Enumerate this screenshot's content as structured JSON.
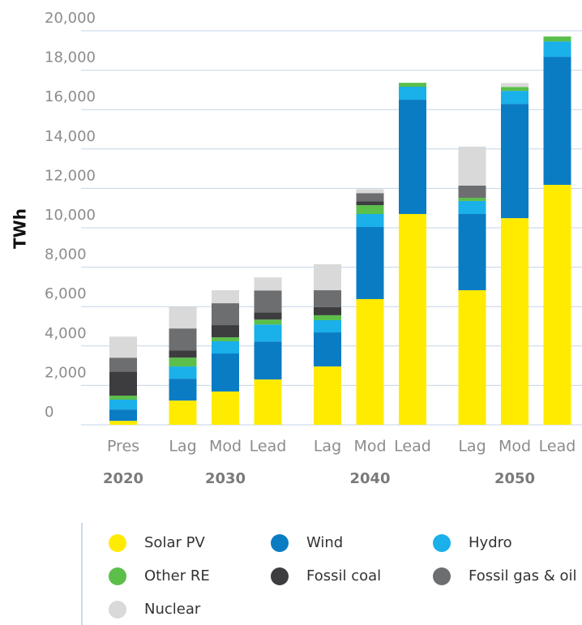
{
  "chart_data": {
    "type": "stacked_bar",
    "y_label": "TWh",
    "categories": [
      "Pres",
      "Lag",
      "Mod",
      "Lead",
      "Lag",
      "Mod",
      "Lead",
      "Lag",
      "Mod",
      "Lead"
    ],
    "group_labels": [
      "2020",
      "2030",
      "2040",
      "2050"
    ],
    "ylim": [
      0,
      20000
    ],
    "yticks": [
      0,
      {
        "value": 2000,
        "label": "2,000"
      },
      {
        "value": 4000,
        "label": "4,000"
      },
      {
        "value": 6000,
        "label": "6,000"
      },
      {
        "value": 8000,
        "label": "8,000"
      },
      {
        "value": 10000,
        "label": "10,000"
      },
      {
        "value": 12000,
        "label": "12,000"
      },
      {
        "value": 14000,
        "label": "14,000"
      },
      {
        "value": 16000,
        "label": "16,000"
      },
      {
        "value": 18000,
        "label": "18,000"
      },
      {
        "value": 20000,
        "label": "20,000"
      }
    ],
    "grid": true,
    "series": [
      {
        "name": "Solar PV",
        "color": "#ffeb00",
        "values": [
          200,
          1230,
          1690,
          2300,
          2960,
          6380,
          10700,
          6830,
          10490,
          12180
        ]
      },
      {
        "name": "Wind",
        "color": "#0a7cc4",
        "values": [
          576,
          1110,
          1930,
          1930,
          1730,
          3660,
          5800,
          3870,
          5800,
          6500
        ]
      },
      {
        "name": "Hydro",
        "color": "#1ab0ea",
        "values": [
          500,
          620,
          620,
          860,
          620,
          660,
          660,
          660,
          660,
          780
        ]
      },
      {
        "name": "Other RE",
        "color": "#5bbf4a",
        "values": [
          200,
          450,
          200,
          250,
          250,
          450,
          200,
          160,
          200,
          250
        ]
      },
      {
        "name": "Fossil coal",
        "color": "#3d3d3f",
        "values": [
          1230,
          370,
          620,
          370,
          410,
          200,
          0,
          0,
          0,
          0
        ]
      },
      {
        "name": "Fossil gas & oil",
        "color": "#6d6e70",
        "values": [
          700,
          1110,
          1110,
          1110,
          860,
          410,
          0,
          620,
          0,
          0
        ]
      },
      {
        "name": "Nuclear",
        "color": "#d9d9d9",
        "values": [
          1070,
          1110,
          660,
          660,
          1320,
          200,
          0,
          1980,
          200,
          0
        ]
      }
    ]
  }
}
